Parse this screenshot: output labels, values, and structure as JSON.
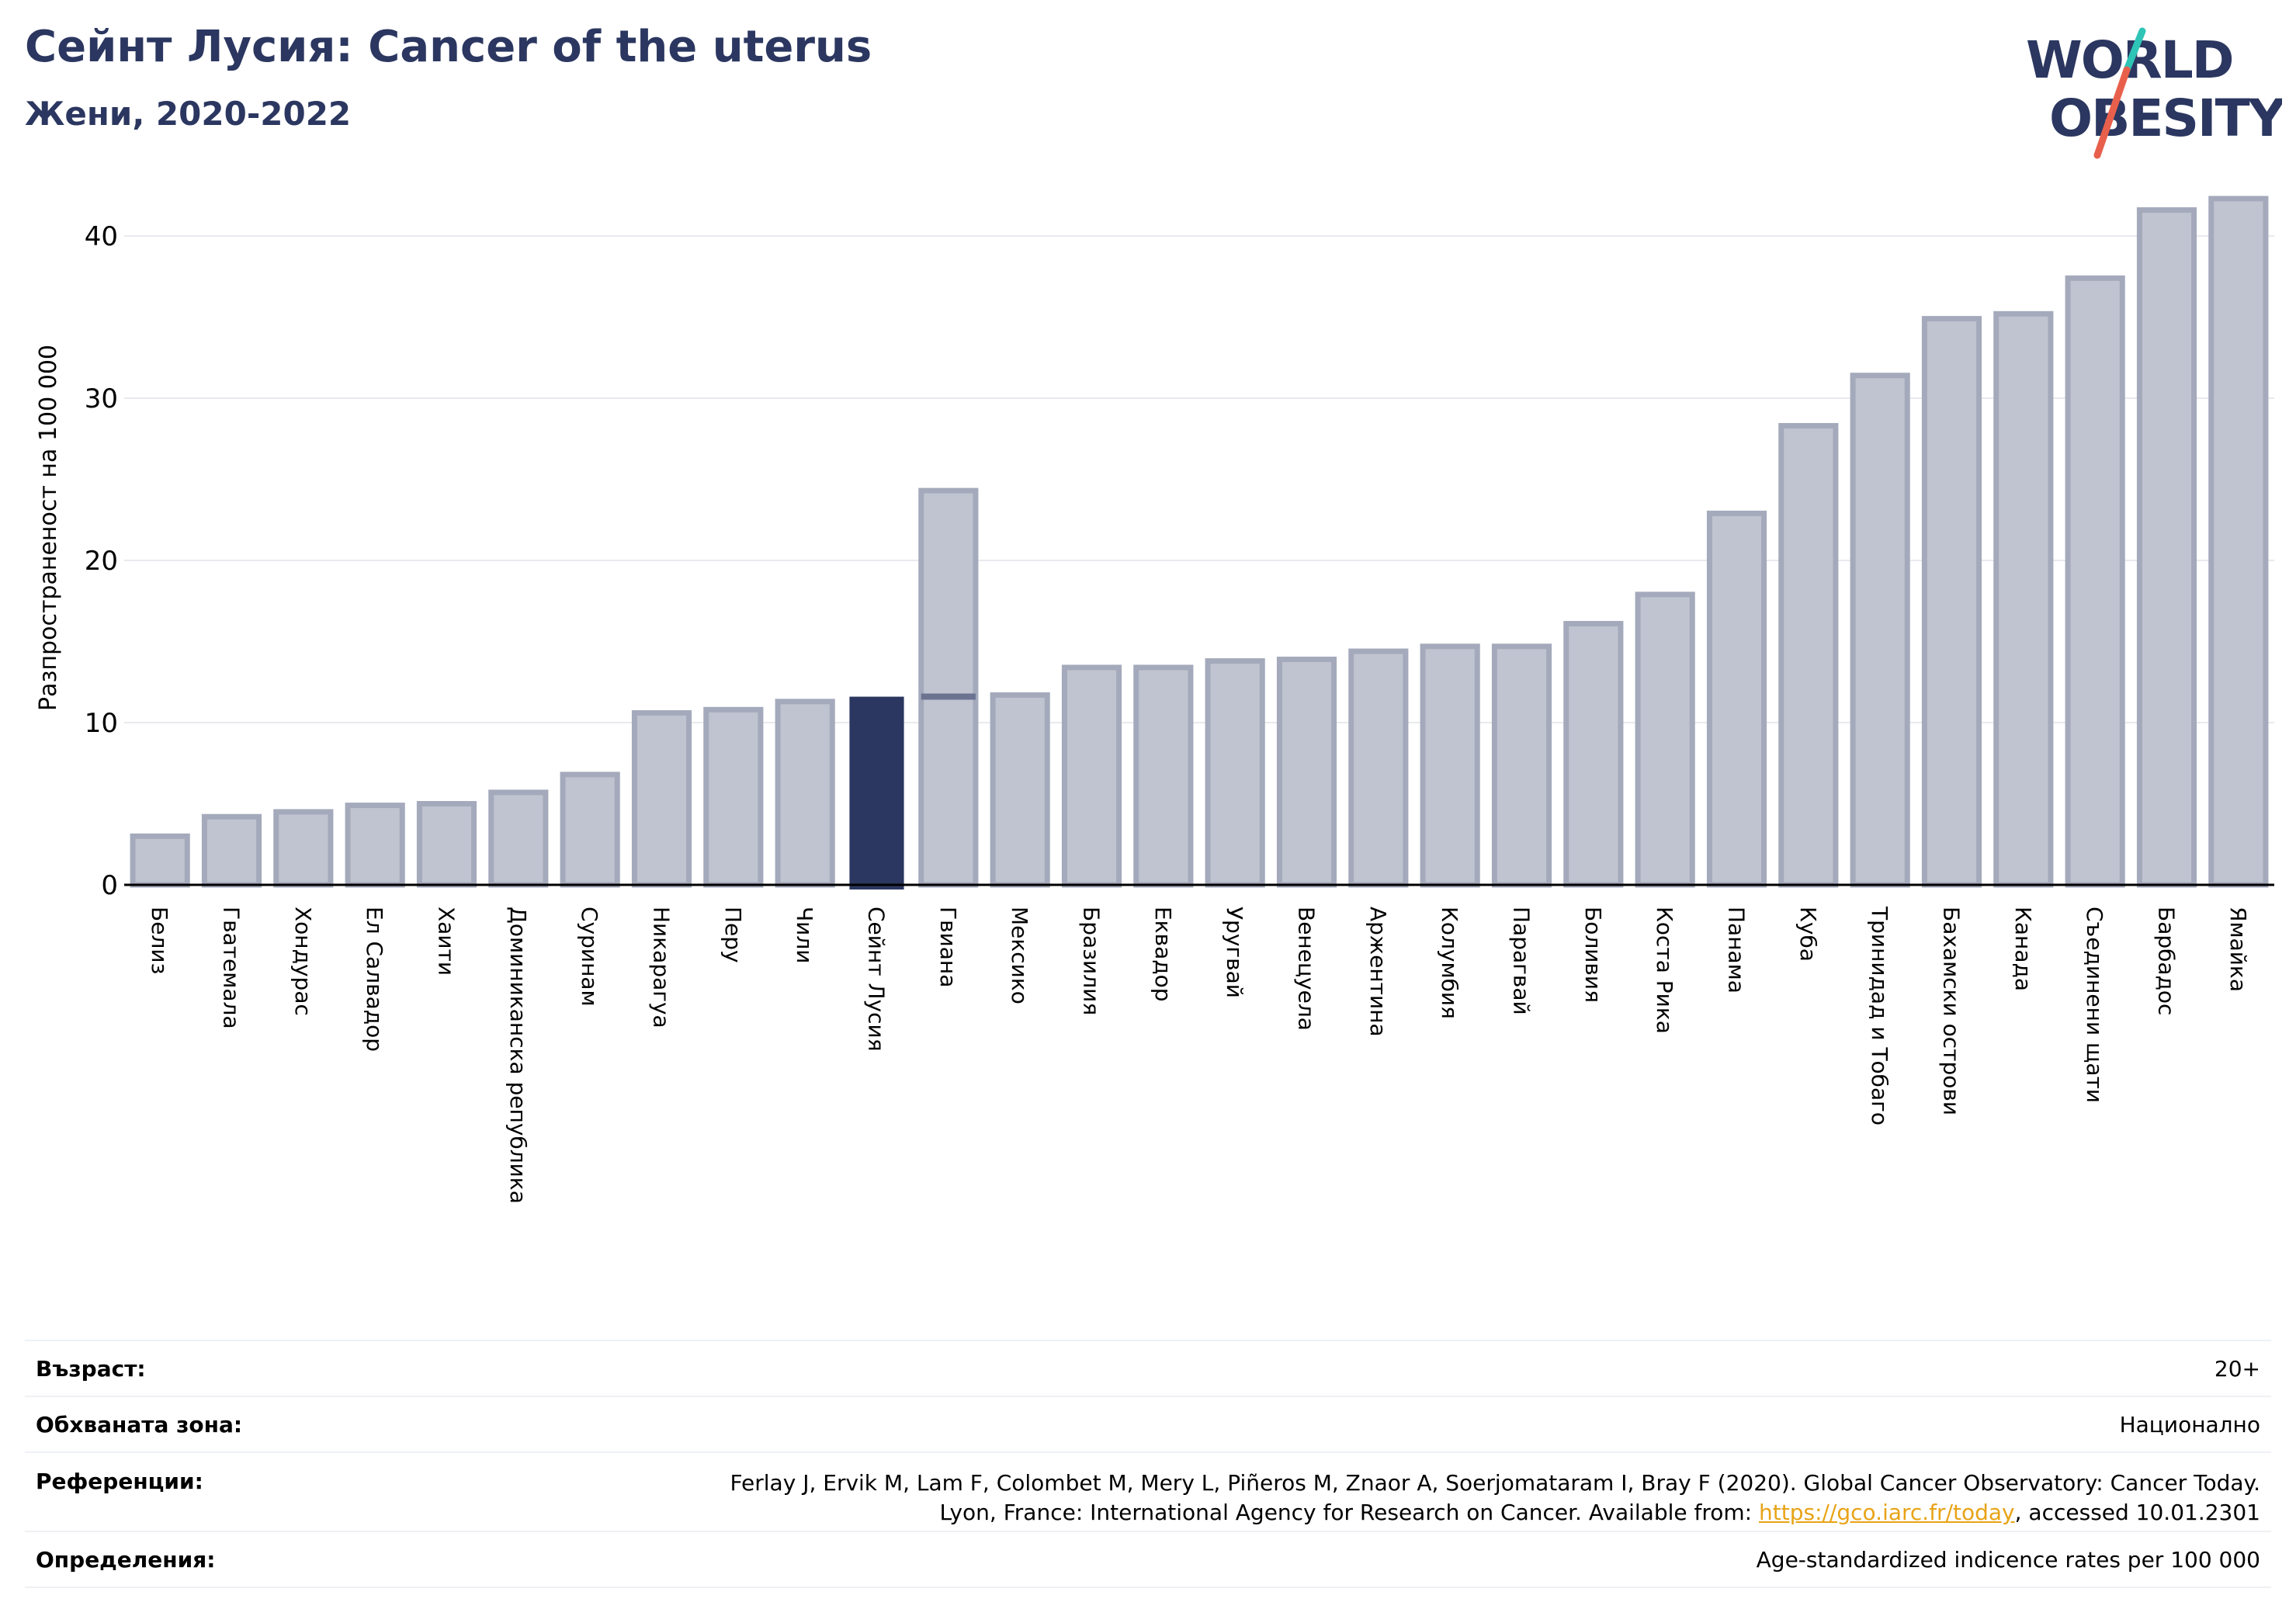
{
  "header": {
    "title": "Сейнт Лусия: Cancer of the uterus",
    "subtitle": "Жени, 2020-2022"
  },
  "logo": {
    "line1": "WORLD",
    "line2": "OBESITY",
    "accent_colors": [
      "#2ec4b6",
      "#e8604c"
    ]
  },
  "colors": {
    "highlight": "#2b3760",
    "bar_fill": "#c0c4d0",
    "bar_stroke": "#a4aabb",
    "text_dark": "#2b3760"
  },
  "chart_data": {
    "type": "bar",
    "ylabel": "Разпространеност  на 100 000",
    "ylim": [
      0,
      43
    ],
    "yticks": [
      0,
      10,
      20,
      30,
      40
    ],
    "grid": true,
    "highlight": "Сейнт Лусия",
    "highlight_marker_value": 11.6,
    "categories": [
      "Белиз",
      "Гватемала",
      "Хондурас",
      "Ел Салвадор",
      "Хаити",
      "Доминиканска република",
      "Суринам",
      "Никарагуа",
      "Перу",
      "Чили",
      "Сейнт Лусия",
      "Гвиана",
      "Мексико",
      "Бразилия",
      "Еквадор",
      "Уругвай",
      "Венецуела",
      "Аржентина",
      "Колумбия",
      "Парагвай",
      "Боливия",
      "Коста Рика",
      "Панама",
      "Куба",
      "Тринидад и Тобаго",
      "Бахамски острови",
      "Канада",
      "Съединени щати",
      "Барбадос",
      "Ямайка"
    ],
    "values": [
      3.0,
      4.2,
      4.5,
      4.9,
      5.0,
      5.7,
      6.8,
      10.6,
      10.8,
      11.3,
      11.6,
      24.3,
      11.7,
      13.4,
      13.4,
      13.8,
      13.9,
      14.4,
      14.7,
      14.7,
      16.1,
      17.9,
      22.9,
      28.3,
      31.4,
      34.9,
      35.2,
      37.4,
      41.6,
      42.3
    ]
  },
  "meta": [
    {
      "key": "Възраст:",
      "value": "20+"
    },
    {
      "key": "Обхваната зона:",
      "value": "Национално"
    },
    {
      "key": "Референции:",
      "value_line1": "Ferlay J, Ervik M, Lam F, Colombet M, Mery L, Piñeros M, Znaor A, Soerjomataram I, Bray F (2020). Global Cancer Observatory: Cancer Today.",
      "value_line2_pre": "Lyon, France: International Agency for Research on Cancer. Available from: ",
      "link": "https://gco.iarc.fr/today",
      "value_line2_post": ", accessed 10.01.2301"
    },
    {
      "key": "Определения:",
      "value": "Age-standardized indicence rates per 100 000"
    }
  ]
}
